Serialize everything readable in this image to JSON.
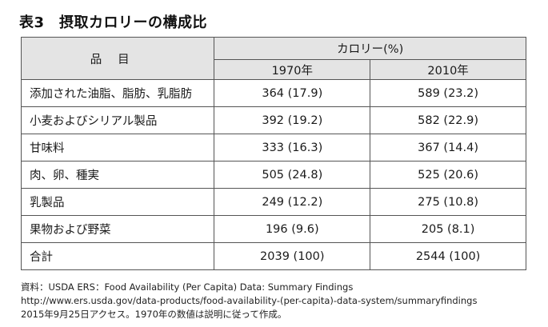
{
  "title": "表3　摂取カロリーの構成比",
  "table": {
    "item_header": "品目",
    "group_header": "カロリー(%)",
    "year_headers": [
      "1970年",
      "2010年"
    ],
    "rows": [
      {
        "item": "添加された油脂、脂肪、乳脂肪",
        "y1970": "364 (17.9)",
        "y2010": "589 (23.2)"
      },
      {
        "item": "小麦およびシリアル製品",
        "y1970": "392 (19.2)",
        "y2010": "582 (22.9)"
      },
      {
        "item": "甘味料",
        "y1970": "333 (16.3)",
        "y2010": "367 (14.4)"
      },
      {
        "item": "肉、卵、種実",
        "y1970": "505 (24.8)",
        "y2010": "525 (20.6)"
      },
      {
        "item": "乳製品",
        "y1970": "249 (12.2)",
        "y2010": "275 (10.8)"
      },
      {
        "item": "果物および野菜",
        "y1970": "196 (9.6)",
        "y2010": "205 (8.1)"
      },
      {
        "item": "合計",
        "y1970": "2039 (100)",
        "y2010": "2544 (100)"
      }
    ]
  },
  "notes": [
    "資料：USDA ERS：Food Availability (Per Capita) Data: Summary Findings",
    "http://www.ers.usda.gov/data-products/food-availability-(per-capita)-data-system/summaryfindings",
    "2015年9月25日アクセス。1970年の数値は説明に従って作成。"
  ]
}
